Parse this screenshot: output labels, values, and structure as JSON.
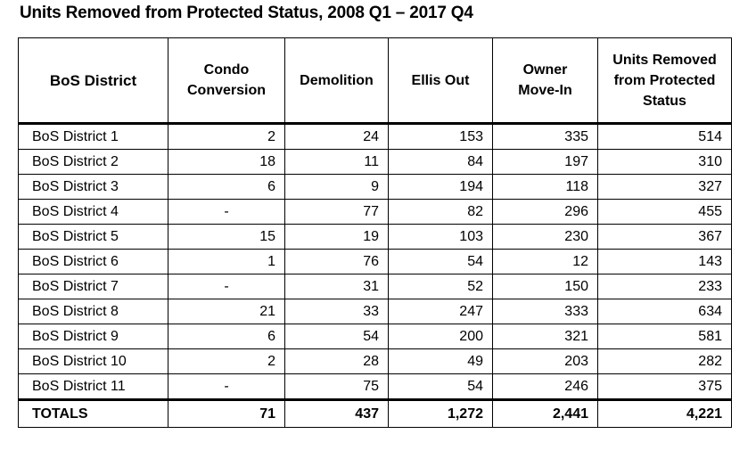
{
  "title": "Units Removed from Protected Status, 2008 Q1 – 2017 Q4",
  "headers": {
    "district": "BoS District",
    "condo_1": "Condo",
    "condo_2": "Conversion",
    "demolition": "Demolition",
    "ellis": "Ellis Out",
    "owner_1": "Owner",
    "owner_2": "Move-In",
    "removed_1": "Units Removed",
    "removed_2": "from Protected",
    "removed_3": "Status"
  },
  "rows": [
    {
      "district": "BoS District 1",
      "condo": "2",
      "demolition": "24",
      "ellis": "153",
      "owner": "335",
      "removed": "514"
    },
    {
      "district": "BoS District 2",
      "condo": "18",
      "demolition": "11",
      "ellis": "84",
      "owner": "197",
      "removed": "310"
    },
    {
      "district": "BoS District 3",
      "condo": "6",
      "demolition": "9",
      "ellis": "194",
      "owner": "118",
      "removed": "327"
    },
    {
      "district": "BoS District 4",
      "condo": "-",
      "demolition": "77",
      "ellis": "82",
      "owner": "296",
      "removed": "455"
    },
    {
      "district": "BoS District 5",
      "condo": "15",
      "demolition": "19",
      "ellis": "103",
      "owner": "230",
      "removed": "367"
    },
    {
      "district": "BoS District 6",
      "condo": "1",
      "demolition": "76",
      "ellis": "54",
      "owner": "12",
      "removed": "143"
    },
    {
      "district": "BoS District 7",
      "condo": "-",
      "demolition": "31",
      "ellis": "52",
      "owner": "150",
      "removed": "233"
    },
    {
      "district": "BoS District 8",
      "condo": "21",
      "demolition": "33",
      "ellis": "247",
      "owner": "333",
      "removed": "634"
    },
    {
      "district": "BoS District 9",
      "condo": "6",
      "demolition": "54",
      "ellis": "200",
      "owner": "321",
      "removed": "581"
    },
    {
      "district": "BoS District 10",
      "condo": "2",
      "demolition": "28",
      "ellis": "49",
      "owner": "203",
      "removed": "282"
    },
    {
      "district": "BoS District 11",
      "condo": "-",
      "demolition": "75",
      "ellis": "54",
      "owner": "246",
      "removed": "375"
    }
  ],
  "totals": {
    "label": "TOTALS",
    "condo": "71",
    "demolition": "437",
    "ellis": "1,272",
    "owner": "2,441",
    "removed": "4,221"
  }
}
